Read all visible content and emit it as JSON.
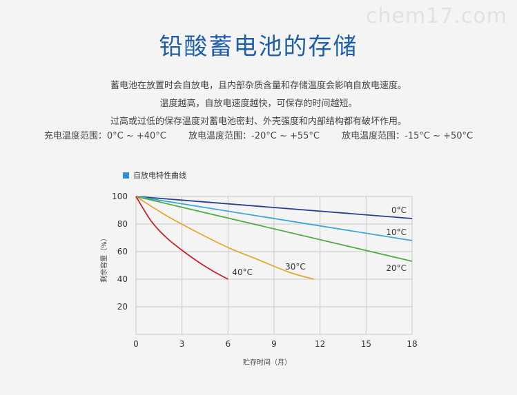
{
  "watermark": "chem17.com",
  "title": "铅酸蓄电池的存储",
  "intro": [
    "蓄电池在放置时会自放电，且内部杂质含量和存储温度会影响自放电速度。",
    "温度越高，自放电速度越快，可保存的时间越短。",
    "过高或过低的保存温度对蓄电池密封、外壳强度和内部结构都有破坏作用。"
  ],
  "ranges": [
    "充电温度范围：0°C ~ +40°C",
    "放电温度范围：-20°C ~ +55°C",
    "放电温度范围：-15°C ~ +50°C"
  ],
  "colors": {
    "title": "#1f5fa8",
    "legend_swatch": "#2e8fd6"
  },
  "chart_data": {
    "type": "line",
    "title": "",
    "legend_label": "自放电特性曲线",
    "xlabel": "贮存时间（月）",
    "ylabel": "剩余容量（%）",
    "xlim": [
      0,
      18
    ],
    "ylim": [
      0,
      100
    ],
    "xticks": [
      0,
      3,
      6,
      9,
      12,
      15,
      18
    ],
    "yticks": [
      20,
      40,
      60,
      80,
      100
    ],
    "grid": true,
    "series": [
      {
        "name": "0°C",
        "color": "#2a3f8f",
        "x": [
          0,
          18
        ],
        "y": [
          100,
          84
        ]
      },
      {
        "name": "10°C",
        "color": "#3aa6d8",
        "x": [
          0,
          18
        ],
        "y": [
          100,
          68
        ]
      },
      {
        "name": "20°C",
        "color": "#4cae3f",
        "x": [
          0,
          18
        ],
        "y": [
          100,
          53
        ]
      },
      {
        "name": "30°C",
        "color": "#e8a830",
        "x": [
          0,
          2,
          4,
          6,
          8,
          10,
          11.6
        ],
        "y": [
          100,
          86,
          74,
          63,
          54,
          45,
          40
        ]
      },
      {
        "name": "40°C",
        "color": "#c8202a",
        "x": [
          0,
          1,
          2,
          3,
          4,
          5,
          6
        ],
        "y": [
          100,
          82,
          70,
          61,
          53,
          46,
          40
        ]
      }
    ]
  }
}
